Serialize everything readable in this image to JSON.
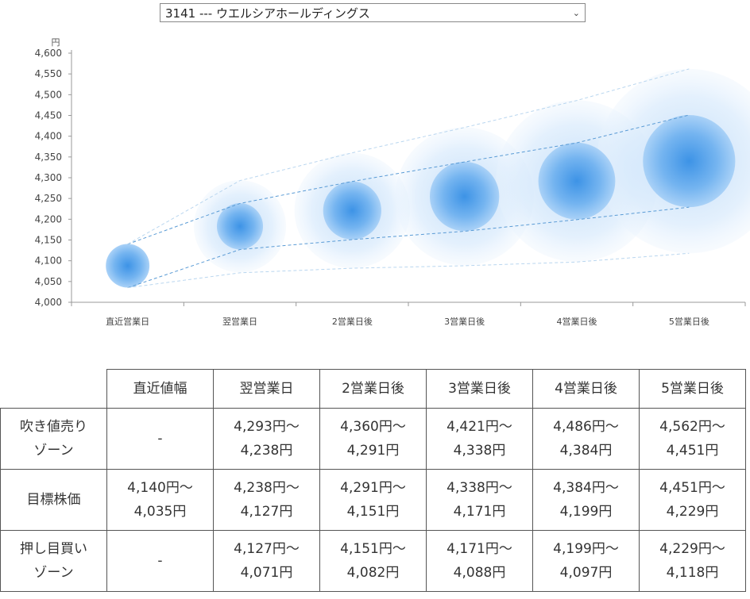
{
  "stock_select": {
    "value": "3141 --- ウエルシアホールディングス"
  },
  "chart_data": {
    "type": "bubble-forecast",
    "y_unit": "円",
    "ylim": [
      4000,
      4600
    ],
    "yticks": [
      "4,000",
      "4,050",
      "4,100",
      "4,150",
      "4,200",
      "4,250",
      "4,300",
      "4,350",
      "4,400",
      "4,450",
      "4,500",
      "4,550",
      "4,600"
    ],
    "categories": [
      "直近営業日",
      "翌営業日",
      "2営業日後",
      "3営業日後",
      "4営業日後",
      "5営業日後"
    ],
    "center": [
      4088,
      4183,
      4221,
      4255,
      4292,
      4340
    ],
    "band_upper": [
      4140,
      4238,
      4291,
      4338,
      4384,
      4451
    ],
    "band_lower": [
      4035,
      4127,
      4151,
      4171,
      4199,
      4229
    ],
    "outer_upper": [
      4140,
      4293,
      4360,
      4421,
      4486,
      4562
    ],
    "outer_lower": [
      4035,
      4071,
      4082,
      4088,
      4097,
      4118
    ],
    "grid": false,
    "colors": {
      "inner": "#4a9ee8",
      "outer": "#cfe5fb",
      "line": "#5a9bd5"
    }
  },
  "table": {
    "headers": [
      "直近値幅",
      "翌営業日",
      "2営業日後",
      "3営業日後",
      "4営業日後",
      "5営業日後"
    ],
    "rows": [
      {
        "label": [
          "吹き値売り",
          "ゾーン"
        ],
        "cells": [
          [
            "-"
          ],
          [
            "4,293円～",
            "4,238円"
          ],
          [
            "4,360円～",
            "4,291円"
          ],
          [
            "4,421円～",
            "4,338円"
          ],
          [
            "4,486円～",
            "4,384円"
          ],
          [
            "4,562円～",
            "4,451円"
          ]
        ]
      },
      {
        "label": [
          "目標株価"
        ],
        "cells": [
          [
            "4,140円～",
            "4,035円"
          ],
          [
            "4,238円～",
            "4,127円"
          ],
          [
            "4,291円～",
            "4,151円"
          ],
          [
            "4,338円～",
            "4,171円"
          ],
          [
            "4,384円～",
            "4,199円"
          ],
          [
            "4,451円～",
            "4,229円"
          ]
        ]
      },
      {
        "label": [
          "押し目買い",
          "ゾーン"
        ],
        "cells": [
          [
            "-"
          ],
          [
            "4,127円～",
            "4,071円"
          ],
          [
            "4,151円～",
            "4,082円"
          ],
          [
            "4,171円～",
            "4,088円"
          ],
          [
            "4,199円～",
            "4,097円"
          ],
          [
            "4,229円～",
            "4,118円"
          ]
        ]
      }
    ]
  }
}
